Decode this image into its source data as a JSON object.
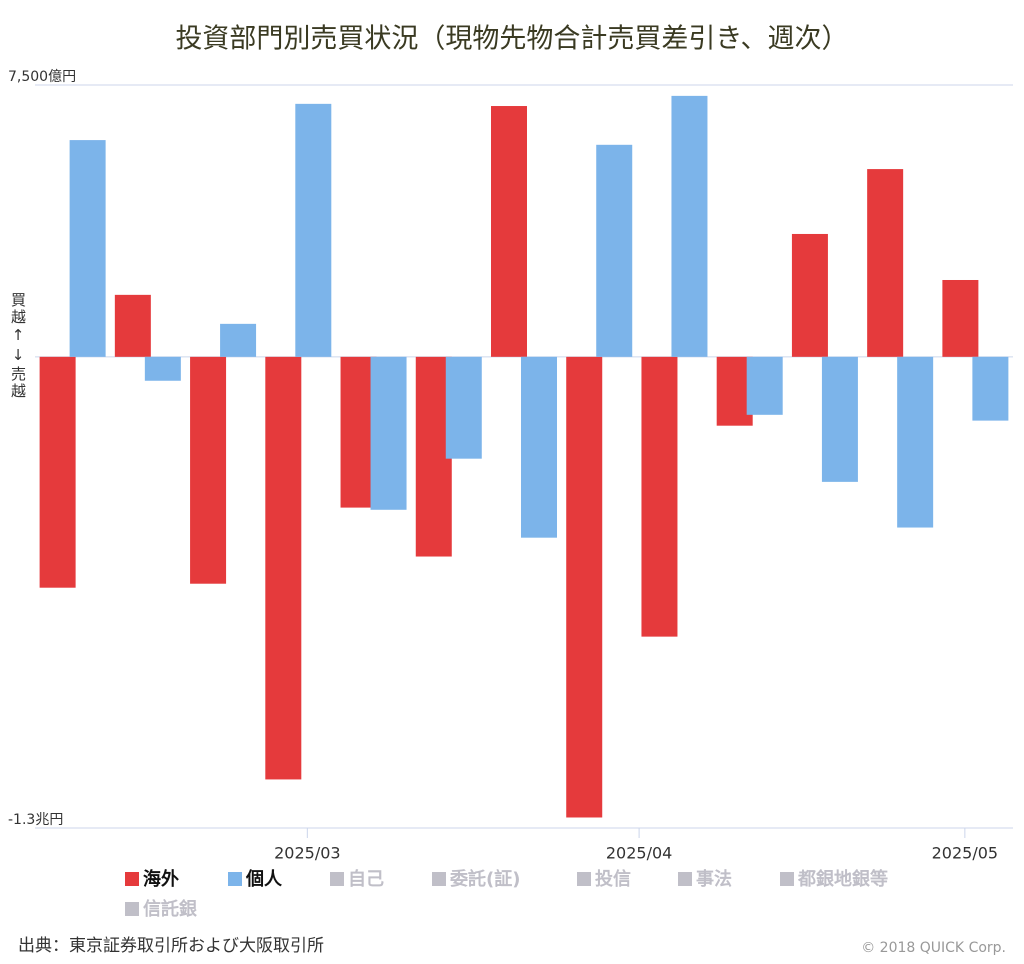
{
  "chart_data": {
    "type": "bar",
    "title": "投資部門別売買状況（現物先物合計売買差引き、週次）",
    "y_label": "買越↑↓売越",
    "categories": [
      null,
      null,
      null,
      null,
      null,
      null,
      null,
      null,
      null,
      null,
      null,
      null,
      null
    ],
    "series": [
      {
        "name": "海外",
        "color": "#e53a3c",
        "values": [
          -6370,
          1710,
          -6260,
          -11660,
          -4160,
          -5510,
          6920,
          -12710,
          -7720,
          -1900,
          3390,
          5180,
          2120
        ]
      },
      {
        "name": "個人",
        "color": "#7cb4ea",
        "values": [
          5980,
          -660,
          910,
          6980,
          -4220,
          -2810,
          -4990,
          5850,
          7200,
          -1600,
          -3450,
          -4710,
          -1760
        ]
      }
    ],
    "hidden_series": [
      "自己",
      "委託(証)",
      "投信",
      "事法",
      "都銀地銀等",
      "信託銀"
    ],
    "hidden_color": "#c0bfc8",
    "ylim": [
      -13000,
      7500
    ],
    "yticks": [
      {
        "value": -13000,
        "label": "-1.3兆円"
      },
      {
        "value": 7500,
        "label": "7,500億円"
      }
    ],
    "xticks": [
      {
        "value": 3.12,
        "label": "2025/03"
      },
      {
        "value": 7.53,
        "label": "2025/04"
      },
      {
        "value": 11.86,
        "label": "2025/05"
      }
    ],
    "source": "出典：東京証券取引所および大阪取引所",
    "copyright": "© 2018 QUICK Corp."
  }
}
